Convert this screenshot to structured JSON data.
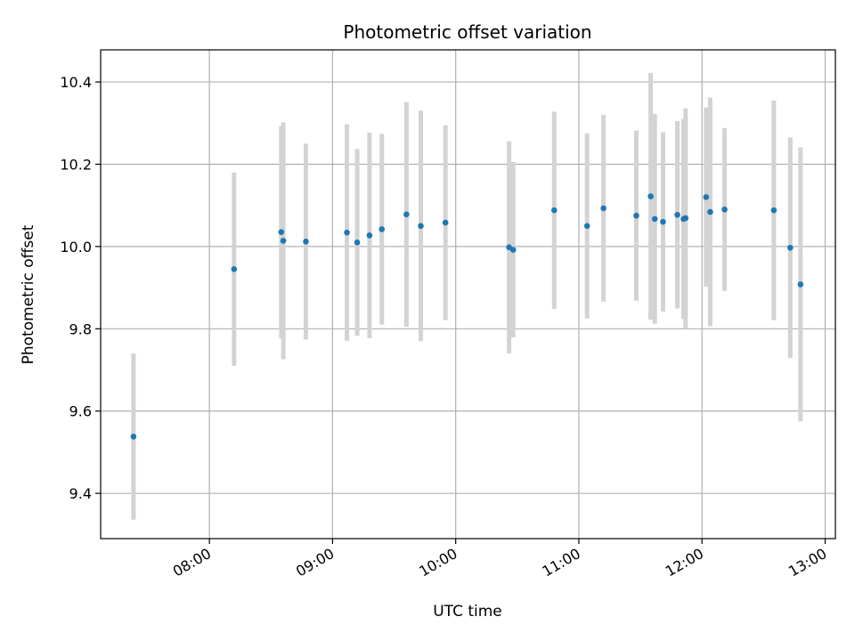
{
  "chart_data": {
    "type": "scatter",
    "title": "Photometric offset variation",
    "xlabel": "UTC time",
    "ylabel": "Photometric offset",
    "x_axis": "time (UTC, HH:MM)",
    "xlim": [
      "07:07",
      "13:05"
    ],
    "ylim": [
      9.29,
      10.478
    ],
    "x_ticks": [
      "08:00",
      "09:00",
      "10:00",
      "11:00",
      "12:00",
      "13:00"
    ],
    "y_ticks": [
      9.4,
      9.6,
      9.8,
      10.0,
      10.2,
      10.4
    ],
    "grid": true,
    "marker_color": "#1f77b4",
    "errorbar_color": "#d3d3d3",
    "points": [
      {
        "t": "07:23",
        "y": 9.538,
        "err": 0.202
      },
      {
        "t": "08:12",
        "y": 9.945,
        "err": 0.235
      },
      {
        "t": "08:35",
        "y": 10.035,
        "err": 0.258
      },
      {
        "t": "08:36",
        "y": 10.014,
        "err": 0.288
      },
      {
        "t": "08:47",
        "y": 10.012,
        "err": 0.238
      },
      {
        "t": "09:07",
        "y": 10.034,
        "err": 0.263
      },
      {
        "t": "09:12",
        "y": 10.01,
        "err": 0.227
      },
      {
        "t": "09:18",
        "y": 10.027,
        "err": 0.25
      },
      {
        "t": "09:24",
        "y": 10.042,
        "err": 0.232
      },
      {
        "t": "09:36",
        "y": 10.078,
        "err": 0.273
      },
      {
        "t": "09:43",
        "y": 10.05,
        "err": 0.28
      },
      {
        "t": "09:55",
        "y": 10.058,
        "err": 0.237
      },
      {
        "t": "10:26",
        "y": 9.998,
        "err": 0.258
      },
      {
        "t": "10:28",
        "y": 9.992,
        "err": 0.213
      },
      {
        "t": "10:48",
        "y": 10.088,
        "err": 0.24
      },
      {
        "t": "11:04",
        "y": 10.05,
        "err": 0.225
      },
      {
        "t": "11:12",
        "y": 10.093,
        "err": 0.227
      },
      {
        "t": "11:28",
        "y": 10.075,
        "err": 0.207
      },
      {
        "t": "11:35",
        "y": 10.122,
        "err": 0.3
      },
      {
        "t": "11:37",
        "y": 10.067,
        "err": 0.255
      },
      {
        "t": "11:41",
        "y": 10.06,
        "err": 0.218
      },
      {
        "t": "11:48",
        "y": 10.077,
        "err": 0.228
      },
      {
        "t": "11:51",
        "y": 10.067,
        "err": 0.243
      },
      {
        "t": "11:52",
        "y": 10.069,
        "err": 0.267
      },
      {
        "t": "12:02",
        "y": 10.12,
        "err": 0.218
      },
      {
        "t": "12:04",
        "y": 10.084,
        "err": 0.278
      },
      {
        "t": "12:11",
        "y": 10.09,
        "err": 0.198
      },
      {
        "t": "12:35",
        "y": 10.088,
        "err": 0.267
      },
      {
        "t": "12:43",
        "y": 9.997,
        "err": 0.268
      },
      {
        "t": "12:48",
        "y": 9.908,
        "err": 0.333
      }
    ]
  }
}
